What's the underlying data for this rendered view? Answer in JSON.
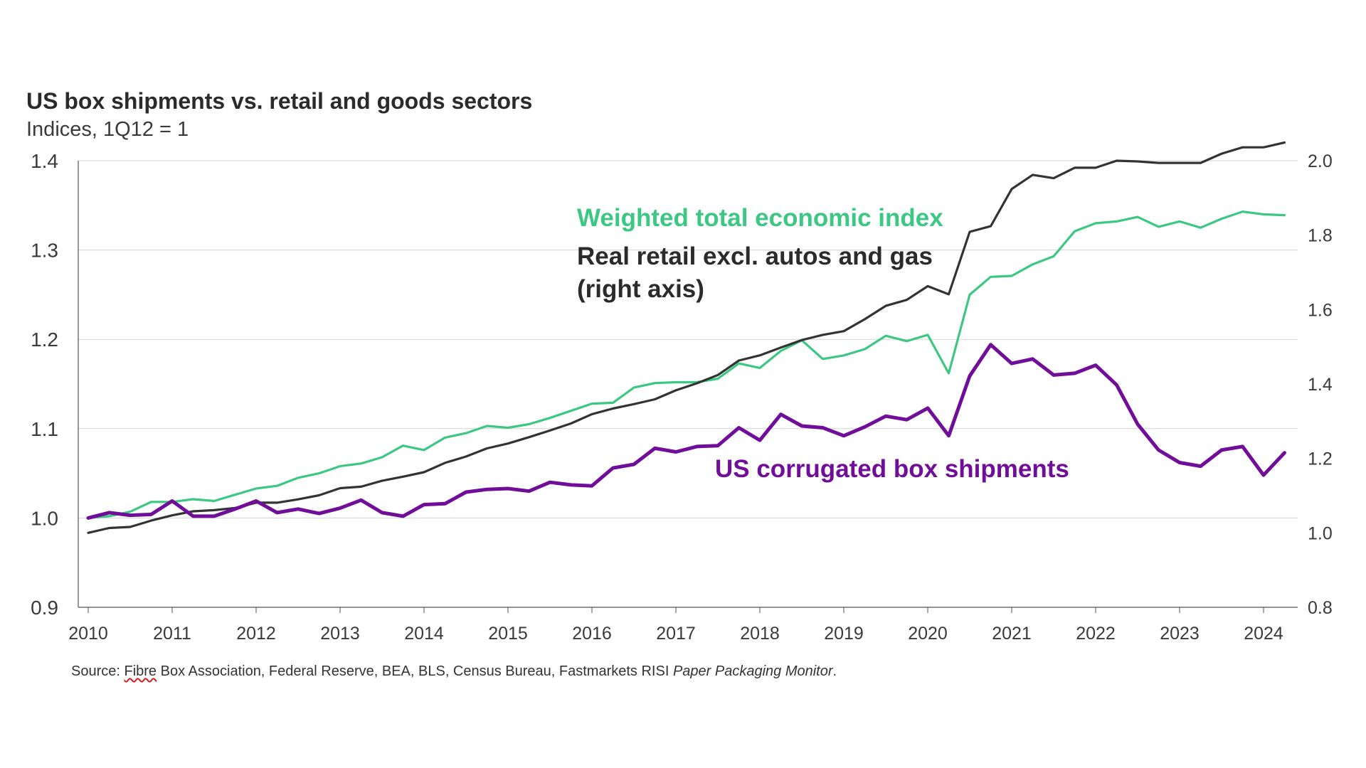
{
  "chart_data": {
    "type": "line",
    "title": "US box shipments vs. retail and goods sectors",
    "subtitle": "Indices, 1Q12 = 1",
    "source": {
      "prefix": "Source: ",
      "highlighted": "Fibre",
      "main": " Box Association, Federal Reserve, BEA, BLS, Census Bureau, Fastmarkets RISI ",
      "italic": "Paper Packaging Monitor",
      "suffix": "."
    },
    "x_ticks": [
      "2010",
      "2011",
      "2012",
      "2013",
      "2014",
      "2015",
      "2016",
      "2017",
      "2018",
      "2019",
      "2020",
      "2021",
      "2022",
      "2023",
      "2024"
    ],
    "x_range": [
      2010,
      2024.5
    ],
    "left_axis": {
      "ylim": [
        0.9,
        1.4
      ],
      "ticks": [
        "0.9",
        "1.0",
        "1.1",
        "1.2",
        "1.3",
        "1.4"
      ]
    },
    "right_axis": {
      "ylim": [
        0.8,
        2.0
      ],
      "ticks": [
        "0.8",
        "1.0",
        "1.2",
        "1.4",
        "1.6",
        "1.8",
        "2.0"
      ]
    },
    "grid": true,
    "series": [
      {
        "name": "Weighted total economic index",
        "label_lines": [
          "Weighted total economic index"
        ],
        "color": "#3cc883",
        "axis": "left",
        "x": [
          2010.0,
          2010.25,
          2010.5,
          2010.75,
          2011.0,
          2011.25,
          2011.5,
          2011.75,
          2012.0,
          2012.25,
          2012.5,
          2012.75,
          2013.0,
          2013.25,
          2013.5,
          2013.75,
          2014.0,
          2014.25,
          2014.5,
          2014.75,
          2015.0,
          2015.25,
          2015.5,
          2015.75,
          2016.0,
          2016.25,
          2016.5,
          2016.75,
          2017.0,
          2017.25,
          2017.5,
          2017.75,
          2018.0,
          2018.25,
          2018.5,
          2018.75,
          2019.0,
          2019.25,
          2019.5,
          2019.75,
          2020.0,
          2020.25,
          2020.5,
          2020.75,
          2021.0,
          2021.25,
          2021.5,
          2021.75,
          2022.0,
          2022.25,
          2022.5,
          2022.75,
          2023.0,
          2023.25,
          2023.5,
          2023.75,
          2024.0,
          2024.25
        ],
        "values": [
          1.0,
          1.002,
          1.007,
          1.018,
          1.018,
          1.021,
          1.019,
          1.026,
          1.033,
          1.036,
          1.045,
          1.05,
          1.058,
          1.061,
          1.068,
          1.081,
          1.076,
          1.09,
          1.095,
          1.103,
          1.101,
          1.105,
          1.112,
          1.12,
          1.128,
          1.129,
          1.146,
          1.151,
          1.152,
          1.152,
          1.156,
          1.173,
          1.168,
          1.187,
          1.199,
          1.178,
          1.182,
          1.189,
          1.204,
          1.198,
          1.205,
          1.162,
          1.25,
          1.27,
          1.271,
          1.284,
          1.293,
          1.321,
          1.33,
          1.332,
          1.337,
          1.326,
          1.332,
          1.325,
          1.335,
          1.343,
          1.34,
          1.339
        ]
      },
      {
        "name": "Real retail excl. autos and gas (right axis)",
        "label_lines": [
          "Real retail excl. autos and gas",
          "(right axis)"
        ],
        "color": "#333333",
        "axis": "right",
        "x": [
          2010.0,
          2010.25,
          2010.5,
          2010.75,
          2011.0,
          2011.25,
          2011.5,
          2011.75,
          2012.0,
          2012.25,
          2012.5,
          2012.75,
          2013.0,
          2013.25,
          2013.5,
          2013.75,
          2014.0,
          2014.25,
          2014.5,
          2014.75,
          2015.0,
          2015.25,
          2015.5,
          2015.75,
          2016.0,
          2016.25,
          2016.5,
          2016.75,
          2017.0,
          2017.25,
          2017.5,
          2017.75,
          2018.0,
          2018.25,
          2018.5,
          2018.75,
          2019.0,
          2019.25,
          2019.5,
          2019.75,
          2020.0,
          2020.25,
          2020.5,
          2020.75,
          2021.0,
          2021.25,
          2021.5,
          2021.75,
          2022.0,
          2022.25,
          2022.5,
          2022.75,
          2023.0,
          2023.25,
          2023.5,
          2023.75,
          2024.0,
          2024.25
        ],
        "values": [
          1.0,
          1.013,
          1.016,
          1.033,
          1.047,
          1.058,
          1.061,
          1.067,
          1.081,
          1.081,
          1.09,
          1.101,
          1.12,
          1.124,
          1.14,
          1.151,
          1.163,
          1.188,
          1.205,
          1.227,
          1.24,
          1.257,
          1.275,
          1.294,
          1.319,
          1.334,
          1.346,
          1.359,
          1.383,
          1.402,
          1.424,
          1.463,
          1.477,
          1.498,
          1.518,
          1.532,
          1.542,
          1.574,
          1.61,
          1.626,
          1.663,
          1.641,
          1.809,
          1.824,
          1.924,
          1.962,
          1.953,
          1.981,
          1.981,
          2.0,
          1.998,
          1.994,
          1.994,
          1.994,
          2.019,
          2.036,
          2.036,
          2.049
        ]
      },
      {
        "name": "US corrugated box shipments",
        "label_lines": [
          "US corrugated box shipments"
        ],
        "color": "#700e9a",
        "axis": "left",
        "x": [
          2010.0,
          2010.25,
          2010.5,
          2010.75,
          2011.0,
          2011.25,
          2011.5,
          2011.75,
          2012.0,
          2012.25,
          2012.5,
          2012.75,
          2013.0,
          2013.25,
          2013.5,
          2013.75,
          2014.0,
          2014.25,
          2014.5,
          2014.75,
          2015.0,
          2015.25,
          2015.5,
          2015.75,
          2016.0,
          2016.25,
          2016.5,
          2016.75,
          2017.0,
          2017.25,
          2017.5,
          2017.75,
          2018.0,
          2018.25,
          2018.5,
          2018.75,
          2019.0,
          2019.25,
          2019.5,
          2019.75,
          2020.0,
          2020.25,
          2020.5,
          2020.75,
          2021.0,
          2021.25,
          2021.5,
          2021.75,
          2022.0,
          2022.25,
          2022.5,
          2022.75,
          2023.0,
          2023.25,
          2023.5,
          2023.75,
          2024.0,
          2024.25
        ],
        "values": [
          1.0,
          1.006,
          1.003,
          1.004,
          1.019,
          1.002,
          1.002,
          1.01,
          1.019,
          1.006,
          1.01,
          1.005,
          1.011,
          1.02,
          1.006,
          1.002,
          1.015,
          1.016,
          1.029,
          1.032,
          1.033,
          1.03,
          1.04,
          1.037,
          1.036,
          1.056,
          1.06,
          1.078,
          1.074,
          1.08,
          1.081,
          1.101,
          1.087,
          1.116,
          1.103,
          1.101,
          1.092,
          1.102,
          1.114,
          1.11,
          1.123,
          1.092,
          1.159,
          1.194,
          1.173,
          1.178,
          1.16,
          1.162,
          1.171,
          1.149,
          1.105,
          1.076,
          1.062,
          1.058,
          1.076,
          1.08,
          1.048,
          1.073
        ]
      }
    ]
  }
}
